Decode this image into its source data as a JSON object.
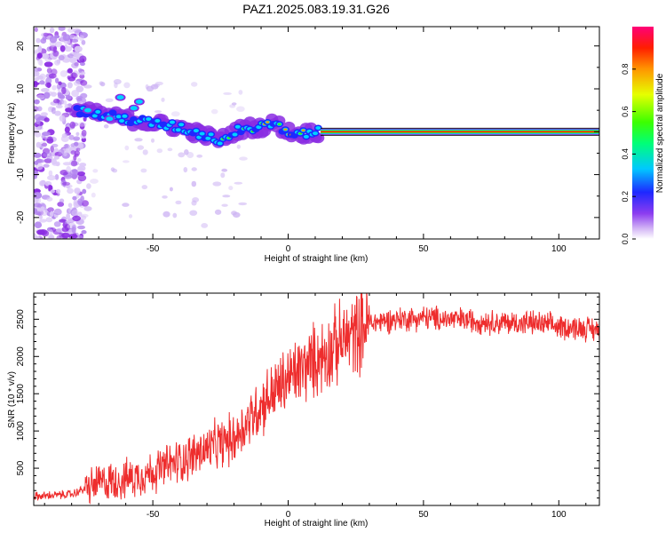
{
  "figure_title": "PAZ1.2025.083.19.31.G26",
  "chart_data": [
    {
      "type": "heatmap",
      "title": "PAZ1.2025.083.19.31.G26",
      "xlabel": "Height of straight line (km)",
      "ylabel": "Frequency (Hz)",
      "xlim": [
        -94,
        115
      ],
      "ylim": [
        -25,
        24.5
      ],
      "xticks": [
        -50,
        0,
        50,
        100
      ],
      "yticks": [
        -20,
        -10,
        0,
        10,
        20
      ],
      "colorbar": {
        "label": "Normalized spectral amplitude",
        "range": [
          0,
          1
        ],
        "ticks": [
          "0.0",
          "0.2",
          "0.4",
          "0.6",
          "0.8"
        ]
      },
      "ridge": {
        "description": "dominant frequency trace",
        "x": [
          -78,
          -70,
          -60,
          -50,
          -40,
          -30,
          -25,
          -20,
          -15,
          -10,
          -5,
          0,
          5,
          10,
          15,
          50,
          100,
          115
        ],
        "y": [
          5,
          4,
          3,
          2,
          1,
          -1,
          -2,
          0,
          1,
          1,
          2,
          0,
          -0.5,
          0,
          0,
          0,
          0,
          0
        ]
      },
      "scatter_region": {
        "x": [
          -94,
          -75
        ],
        "y": [
          -25,
          24.5
        ]
      }
    },
    {
      "type": "line",
      "xlabel": "Height of straight line (km)",
      "ylabel": "SNR (10 * v/v)",
      "xlim": [
        -94,
        115
      ],
      "ylim": [
        0,
        2850
      ],
      "xticks": [
        -50,
        0,
        50,
        100
      ],
      "yticks": [
        500,
        1000,
        1500,
        2000,
        2500
      ],
      "series": [
        {
          "name": "SNR",
          "color": "#ff2a2a",
          "trend_x": [
            -94,
            -80,
            -70,
            -60,
            -50,
            -40,
            -30,
            -20,
            -10,
            0,
            10,
            20,
            30,
            40,
            50,
            60,
            70,
            80,
            90,
            100,
            110,
            115
          ],
          "trend_y": [
            120,
            150,
            300,
            350,
            450,
            600,
            750,
            900,
            1350,
            1700,
            1950,
            2200,
            2450,
            2500,
            2520,
            2500,
            2480,
            2450,
            2450,
            2400,
            2380,
            2350
          ]
        }
      ]
    }
  ]
}
